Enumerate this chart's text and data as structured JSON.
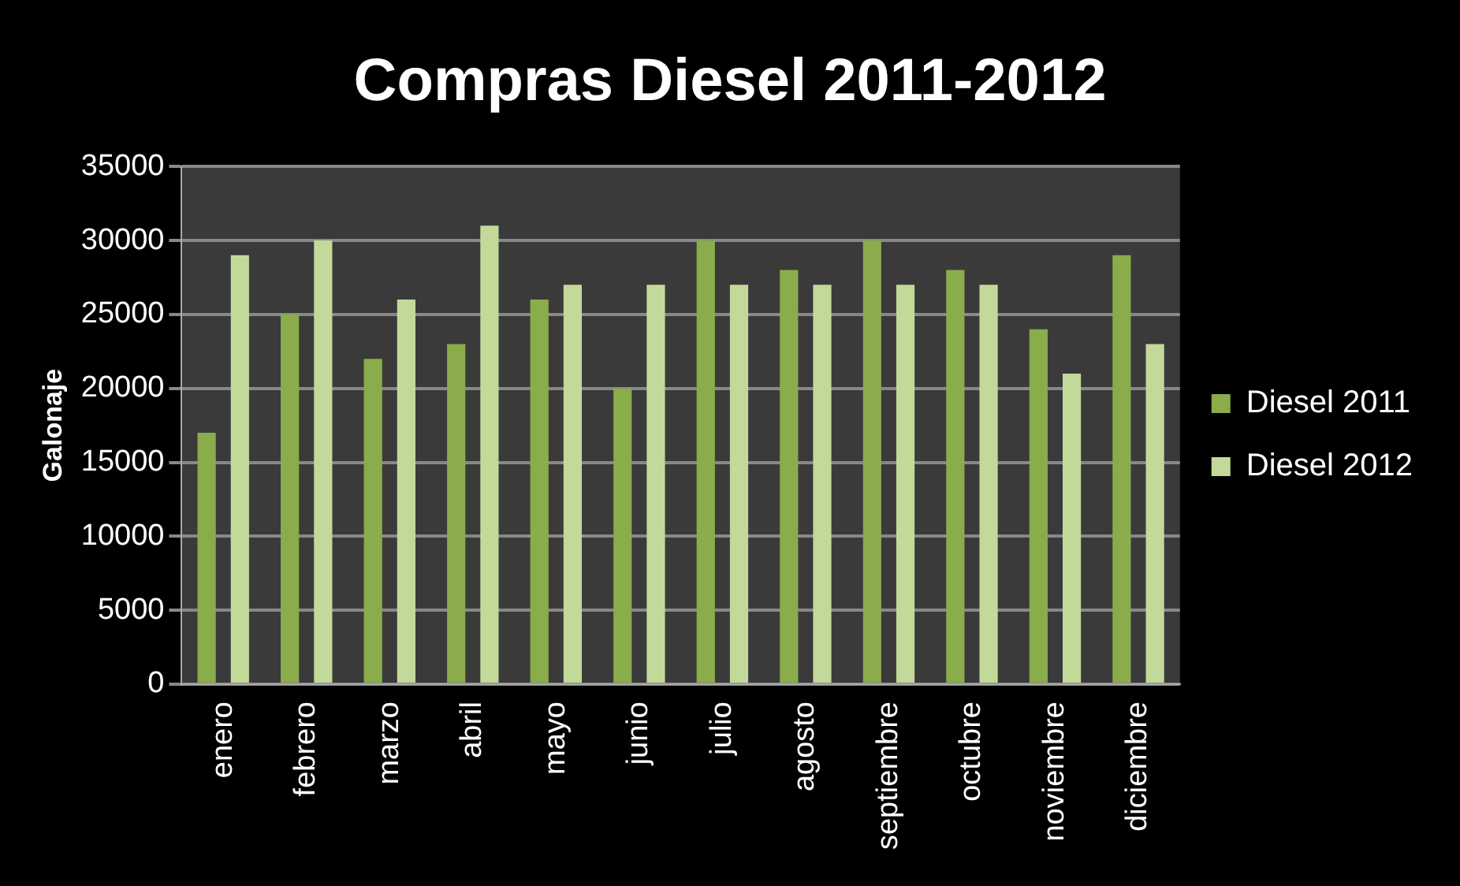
{
  "chart_data": {
    "type": "bar",
    "title": "Compras Diesel 2011-2012",
    "ylabel": "Galonaje",
    "categories": [
      "enero",
      "febrero",
      "marzo",
      "abril",
      "mayo",
      "junio",
      "julio",
      "agosto",
      "septiembre",
      "octubre",
      "noviembre",
      "diciembre"
    ],
    "series": [
      {
        "name": "Diesel 2011",
        "color": "#8aac4a",
        "values": [
          17000,
          25000,
          22000,
          23000,
          26000,
          20000,
          30000,
          28000,
          30000,
          28000,
          24000,
          29000
        ]
      },
      {
        "name": "Diesel 2012",
        "color": "#c3d99a",
        "values": [
          29000,
          30000,
          26000,
          31000,
          27000,
          27000,
          27000,
          27000,
          27000,
          27000,
          21000,
          23000
        ]
      }
    ],
    "ylim": [
      0,
      35000
    ],
    "yticks": [
      0,
      5000,
      10000,
      15000,
      20000,
      25000,
      30000,
      35000
    ],
    "grid": "y",
    "legend": "right"
  }
}
